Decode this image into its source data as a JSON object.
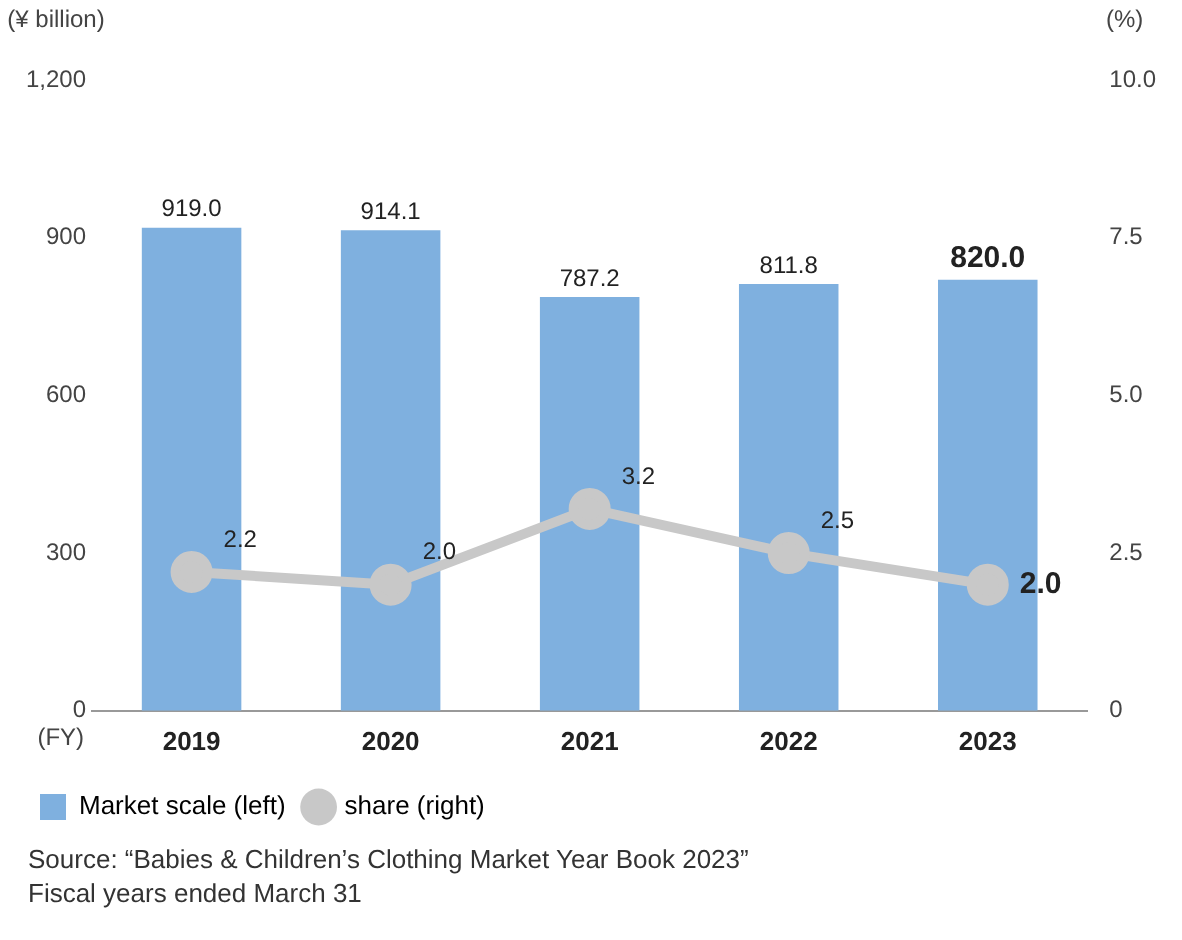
{
  "chart_data": {
    "type": "bar",
    "categories": [
      "2019",
      "2020",
      "2021",
      "2022",
      "2023"
    ],
    "series": [
      {
        "name": "Market scale (left)",
        "color": "#7fb0df",
        "values": [
          919.0,
          914.1,
          787.2,
          811.8,
          820.0
        ],
        "value_labels": [
          "919.0",
          "914.1",
          "787.2",
          "811.8",
          "820.0"
        ]
      },
      {
        "name": "share (right)",
        "type": "line",
        "axis": "y2",
        "color": "#c8c8c8",
        "values": [
          2.2,
          2.0,
          3.2,
          2.5,
          2.0
        ],
        "value_labels": [
          "2.2",
          "2.0",
          "3.2",
          "2.5",
          "2.0"
        ]
      }
    ],
    "ylabel": "(¥ billion)",
    "y2label": "(%)",
    "xlabel": "(FY)",
    "ylim": [
      0,
      1200
    ],
    "yticks": [
      0,
      300,
      600,
      900,
      {
        "value": 1200,
        "label": "1,200"
      }
    ],
    "y2lim": [
      0,
      10
    ],
    "y2ticks": [
      {
        "value": 0,
        "label": "0"
      },
      {
        "value": 2.5,
        "label": "2.5"
      },
      {
        "value": 5,
        "label": "5.0"
      },
      {
        "value": 7.5,
        "label": "7.5"
      },
      {
        "value": 10,
        "label": "10.0"
      }
    ],
    "grid": false,
    "legend": "bottom left",
    "marker": "circle",
    "annotations": [
      "Source: “Babies & Children’s Clothing Market Year Book 2023”",
      "Fiscal years ended March 31"
    ]
  }
}
